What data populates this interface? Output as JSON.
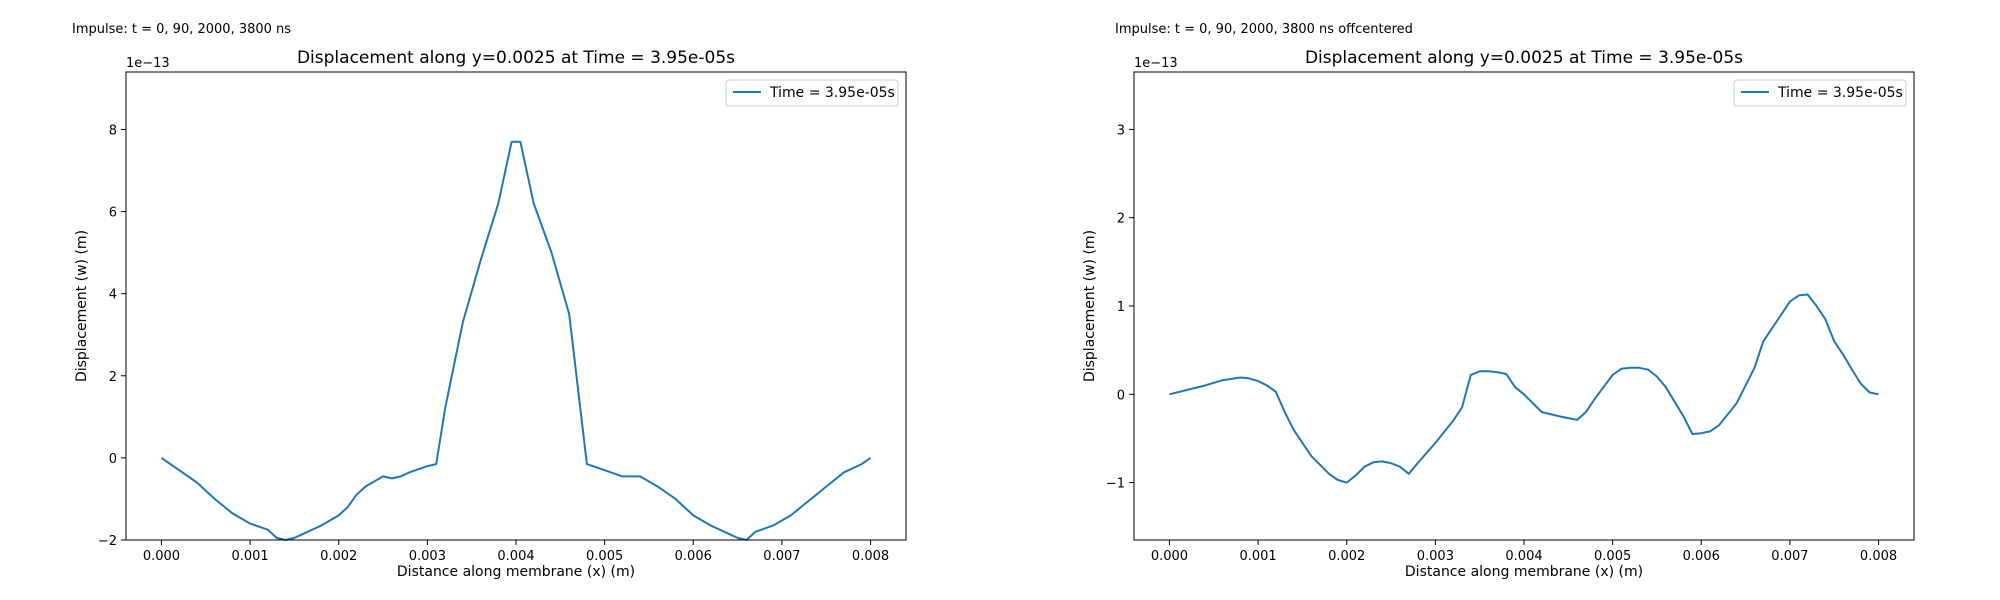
{
  "colors": {
    "series": "#1f77b4",
    "axes": "#000000",
    "legend_border": "#cccccc"
  },
  "panels": [
    {
      "caption": "Impulse: t = 0, 90, 2000, 3800 ns"
    },
    {
      "caption": "Impulse: t = 0, 90, 2000, 3800 ns offcentered"
    }
  ],
  "chart_data": [
    {
      "type": "line",
      "title": "Displacement along y=0.0025 at Time = 3.95e-05s",
      "xlabel": "Distance along membrane (x) (m)",
      "ylabel": "Displacement (w) (m)",
      "y_offset_text": "1e−13",
      "xlim": [
        -0.0004,
        0.0084
      ],
      "ylim": [
        -2.0,
        9.4
      ],
      "xticks": [
        0,
        0.001,
        0.002,
        0.003,
        0.004,
        0.005,
        0.006,
        0.007,
        0.008
      ],
      "xtick_labels": [
        "0.000",
        "0.001",
        "0.002",
        "0.003",
        "0.004",
        "0.005",
        "0.006",
        "0.007",
        "0.008"
      ],
      "yticks": [
        -2,
        0,
        2,
        4,
        6,
        8
      ],
      "ytick_labels": [
        "−2",
        "0",
        "2",
        "4",
        "6",
        "8"
      ],
      "grid": false,
      "legend": "top-right",
      "series": [
        {
          "name": "Time = 3.95e-05s",
          "x": [
            0,
            0.0002,
            0.0004,
            0.0006,
            0.0008,
            0.001,
            0.0012,
            0.0013,
            0.0014,
            0.0015,
            0.0016,
            0.0018,
            0.002,
            0.0021,
            0.0022,
            0.0023,
            0.0025,
            0.0026,
            0.0027,
            0.0028,
            0.003,
            0.0031,
            0.0032,
            0.0034,
            0.0036,
            0.0038,
            0.00395,
            0.00405,
            0.0042,
            0.0044,
            0.0046,
            0.0048,
            0.005,
            0.0052,
            0.0054,
            0.0056,
            0.0058,
            0.006,
            0.0062,
            0.0064,
            0.0065,
            0.0066,
            0.0067,
            0.0069,
            0.0071,
            0.0073,
            0.0075,
            0.0077,
            0.0079,
            0.008
          ],
          "y": [
            0,
            -0.3,
            -0.6,
            -1.0,
            -1.35,
            -1.6,
            -1.75,
            -1.95,
            -2.0,
            -1.95,
            -1.85,
            -1.65,
            -1.4,
            -1.2,
            -0.9,
            -0.7,
            -0.45,
            -0.5,
            -0.45,
            -0.35,
            -0.2,
            -0.15,
            1.2,
            3.3,
            4.8,
            6.2,
            7.7,
            7.7,
            6.2,
            5.0,
            3.5,
            -0.15,
            -0.3,
            -0.45,
            -0.45,
            -0.7,
            -1.0,
            -1.4,
            -1.65,
            -1.85,
            -1.95,
            -2.0,
            -1.8,
            -1.65,
            -1.4,
            -1.05,
            -0.7,
            -0.35,
            -0.15,
            0
          ]
        }
      ]
    },
    {
      "type": "line",
      "title": "Displacement along y=0.0025 at Time = 3.95e-05s",
      "xlabel": "Distance along membrane (x) (m)",
      "ylabel": "Displacement (w) (m)",
      "y_offset_text": "1e−13",
      "xlim": [
        -0.0004,
        0.0084
      ],
      "ylim": [
        -1.65,
        3.65
      ],
      "xticks": [
        0,
        0.001,
        0.002,
        0.003,
        0.004,
        0.005,
        0.006,
        0.007,
        0.008
      ],
      "xtick_labels": [
        "0.000",
        "0.001",
        "0.002",
        "0.003",
        "0.004",
        "0.005",
        "0.006",
        "0.007",
        "0.008"
      ],
      "yticks": [
        -1,
        0,
        1,
        2,
        3
      ],
      "ytick_labels": [
        "−1",
        "0",
        "1",
        "2",
        "3"
      ],
      "grid": false,
      "legend": "top-right",
      "series": [
        {
          "name": "Time = 3.95e-05s",
          "x": [
            0,
            0.0002,
            0.0004,
            0.0006,
            0.0008,
            0.0009,
            0.001,
            0.0011,
            0.0012,
            0.0013,
            0.0014,
            0.0016,
            0.0018,
            0.0019,
            0.002,
            0.0021,
            0.0022,
            0.0023,
            0.0024,
            0.0025,
            0.0026,
            0.0027,
            0.0028,
            0.003,
            0.0032,
            0.0033,
            0.0034,
            0.0035,
            0.0036,
            0.0037,
            0.0038,
            0.0039,
            0.004,
            0.0042,
            0.0044,
            0.0046,
            0.0047,
            0.0048,
            0.005,
            0.0051,
            0.0052,
            0.0053,
            0.0054,
            0.0055,
            0.0056,
            0.0058,
            0.0059,
            0.006,
            0.0061,
            0.0062,
            0.0064,
            0.0066,
            0.0067,
            0.0068,
            0.007,
            0.0071,
            0.0072,
            0.0073,
            0.0074,
            0.0075,
            0.0076,
            0.0077,
            0.0078,
            0.0079,
            0.008
          ],
          "y": [
            0,
            0.05,
            0.1,
            0.16,
            0.19,
            0.18,
            0.15,
            0.1,
            0.03,
            -0.2,
            -0.4,
            -0.7,
            -0.9,
            -0.97,
            -1.0,
            -0.92,
            -0.82,
            -0.77,
            -0.76,
            -0.78,
            -0.82,
            -0.9,
            -0.78,
            -0.55,
            -0.3,
            -0.15,
            0.22,
            0.26,
            0.26,
            0.25,
            0.23,
            0.08,
            0.0,
            -0.2,
            -0.25,
            -0.29,
            -0.2,
            -0.05,
            0.22,
            0.29,
            0.3,
            0.3,
            0.28,
            0.2,
            0.08,
            -0.25,
            -0.45,
            -0.44,
            -0.42,
            -0.35,
            -0.1,
            0.3,
            0.6,
            0.75,
            1.05,
            1.12,
            1.13,
            1.0,
            0.85,
            0.6,
            0.45,
            0.28,
            0.12,
            0.02,
            0.0
          ]
        }
      ]
    }
  ]
}
